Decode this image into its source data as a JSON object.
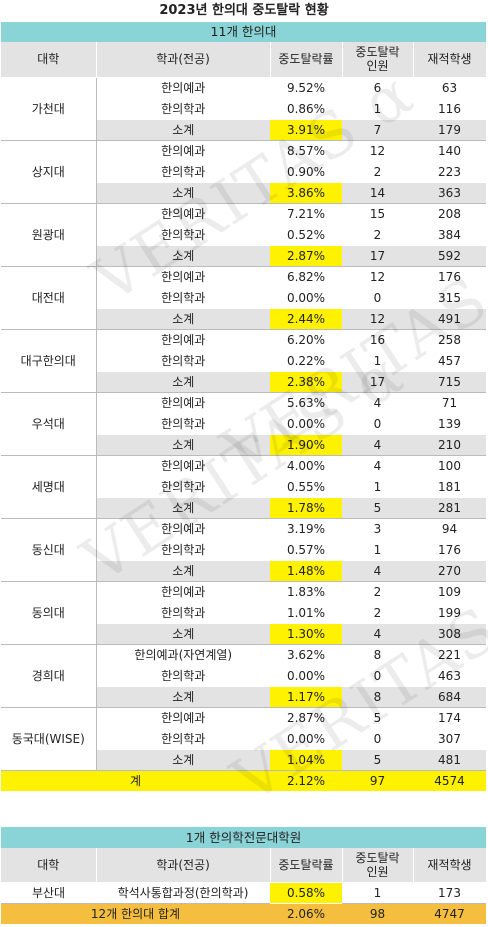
{
  "title": "2023년 한의대 중도탈락 현황",
  "section1": "11개 한의대",
  "headers": {
    "univ": "대학",
    "dept": "학과(전공)",
    "rate": "중도탈락률",
    "drop": "중도탈락\n인원",
    "enrolled": "재적학생"
  },
  "universities": [
    {
      "name": "가천대",
      "rows": [
        {
          "dept": "한의예과",
          "rate": "9.52%",
          "drop": "6",
          "enrolled": "63"
        },
        {
          "dept": "한의학과",
          "rate": "0.86%",
          "drop": "1",
          "enrolled": "116"
        },
        {
          "dept": "소계",
          "rate": "3.91%",
          "drop": "7",
          "enrolled": "179"
        }
      ]
    },
    {
      "name": "상지대",
      "rows": [
        {
          "dept": "한의예과",
          "rate": "8.57%",
          "drop": "12",
          "enrolled": "140"
        },
        {
          "dept": "한의학과",
          "rate": "0.90%",
          "drop": "2",
          "enrolled": "223"
        },
        {
          "dept": "소계",
          "rate": "3.86%",
          "drop": "14",
          "enrolled": "363"
        }
      ]
    },
    {
      "name": "원광대",
      "rows": [
        {
          "dept": "한의예과",
          "rate": "7.21%",
          "drop": "15",
          "enrolled": "208"
        },
        {
          "dept": "한의학과",
          "rate": "0.52%",
          "drop": "2",
          "enrolled": "384"
        },
        {
          "dept": "소계",
          "rate": "2.87%",
          "drop": "17",
          "enrolled": "592"
        }
      ]
    },
    {
      "name": "대전대",
      "rows": [
        {
          "dept": "한의예과",
          "rate": "6.82%",
          "drop": "12",
          "enrolled": "176"
        },
        {
          "dept": "한의학과",
          "rate": "0.00%",
          "drop": "0",
          "enrolled": "315"
        },
        {
          "dept": "소계",
          "rate": "2.44%",
          "drop": "12",
          "enrolled": "491"
        }
      ]
    },
    {
      "name": "대구한의대",
      "rows": [
        {
          "dept": "한의예과",
          "rate": "6.20%",
          "drop": "16",
          "enrolled": "258"
        },
        {
          "dept": "한의학과",
          "rate": "0.22%",
          "drop": "1",
          "enrolled": "457"
        },
        {
          "dept": "소계",
          "rate": "2.38%",
          "drop": "17",
          "enrolled": "715"
        }
      ]
    },
    {
      "name": "우석대",
      "rows": [
        {
          "dept": "한의예과",
          "rate": "5.63%",
          "drop": "4",
          "enrolled": "71"
        },
        {
          "dept": "한의학과",
          "rate": "0.00%",
          "drop": "0",
          "enrolled": "139"
        },
        {
          "dept": "소계",
          "rate": "1.90%",
          "drop": "4",
          "enrolled": "210"
        }
      ]
    },
    {
      "name": "세명대",
      "rows": [
        {
          "dept": "한의예과",
          "rate": "4.00%",
          "drop": "4",
          "enrolled": "100"
        },
        {
          "dept": "한의학과",
          "rate": "0.55%",
          "drop": "1",
          "enrolled": "181"
        },
        {
          "dept": "소계",
          "rate": "1.78%",
          "drop": "5",
          "enrolled": "281"
        }
      ]
    },
    {
      "name": "동신대",
      "rows": [
        {
          "dept": "한의예과",
          "rate": "3.19%",
          "drop": "3",
          "enrolled": "94"
        },
        {
          "dept": "한의학과",
          "rate": "0.57%",
          "drop": "1",
          "enrolled": "176"
        },
        {
          "dept": "소계",
          "rate": "1.48%",
          "drop": "4",
          "enrolled": "270"
        }
      ]
    },
    {
      "name": "동의대",
      "rows": [
        {
          "dept": "한의예과",
          "rate": "1.83%",
          "drop": "2",
          "enrolled": "109"
        },
        {
          "dept": "한의학과",
          "rate": "1.01%",
          "drop": "2",
          "enrolled": "199"
        },
        {
          "dept": "소계",
          "rate": "1.30%",
          "drop": "4",
          "enrolled": "308"
        }
      ]
    },
    {
      "name": "경희대",
      "rows": [
        {
          "dept": "한의예과(자연계열)",
          "rate": "3.62%",
          "drop": "8",
          "enrolled": "221"
        },
        {
          "dept": "한의학과",
          "rate": "0.00%",
          "drop": "0",
          "enrolled": "463"
        },
        {
          "dept": "소계",
          "rate": "1.17%",
          "drop": "8",
          "enrolled": "684"
        }
      ]
    },
    {
      "name": "동국대(WISE)",
      "rows": [
        {
          "dept": "한의예과",
          "rate": "2.87%",
          "drop": "5",
          "enrolled": "174"
        },
        {
          "dept": "한의학과",
          "rate": "0.00%",
          "drop": "0",
          "enrolled": "307"
        },
        {
          "dept": "소계",
          "rate": "1.04%",
          "drop": "5",
          "enrolled": "481"
        }
      ]
    }
  ],
  "total": {
    "label": "계",
    "rate": "2.12%",
    "drop": "97",
    "enrolled": "4574"
  },
  "section2": "1개 한의학전문대학원",
  "grad": {
    "name": "부산대",
    "dept": "학석사통합과정(한의학과)",
    "rate": "0.58%",
    "drop": "1",
    "enrolled": "173"
  },
  "grand_total": {
    "label": "12개 한의대 합계",
    "rate": "2.06%",
    "drop": "98",
    "enrolled": "4747"
  },
  "watermark": "VERITAS α"
}
